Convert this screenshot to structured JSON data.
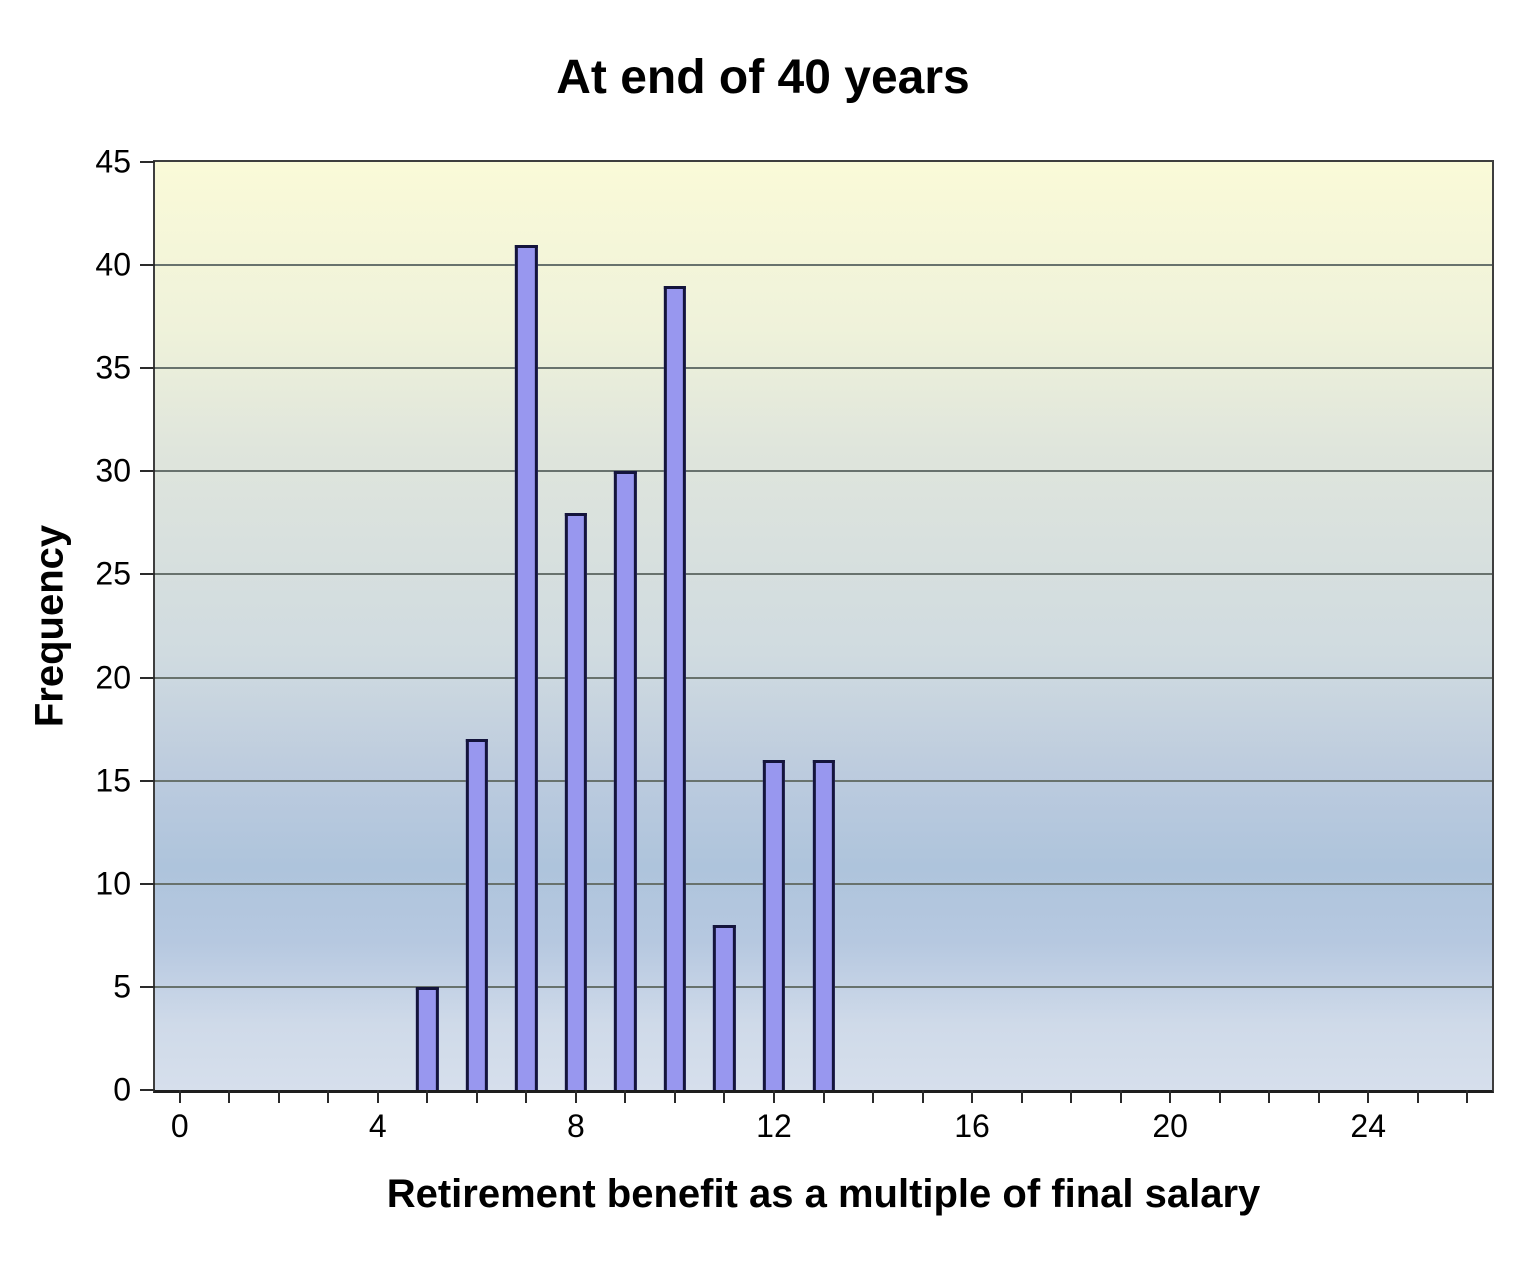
{
  "chart_data": {
    "type": "bar",
    "title": "At end of 40 years",
    "xlabel": "Retirement benefit as a multiple of final salary",
    "ylabel": "Frequency",
    "x": [
      5,
      6,
      7,
      8,
      9,
      10,
      11,
      12,
      13
    ],
    "values": [
      5,
      17,
      41,
      28,
      30,
      39,
      8,
      16,
      16
    ],
    "xlim": [
      -0.5,
      26.5
    ],
    "ylim": [
      0,
      45
    ],
    "xticks_labeled": [
      0,
      4,
      8,
      12,
      16,
      20,
      24
    ],
    "xticks_minor": [
      0,
      1,
      2,
      3,
      4,
      5,
      6,
      7,
      8,
      9,
      10,
      11,
      12,
      13,
      14,
      15,
      16,
      17,
      18,
      19,
      20,
      21,
      22,
      23,
      24,
      25,
      26
    ],
    "yticks": [
      0,
      5,
      10,
      15,
      20,
      25,
      30,
      35,
      40,
      45
    ],
    "grid": "horizontal",
    "legend": "none",
    "bar_width_units": 0.45,
    "colors": {
      "bar_fill": "#9897EF",
      "bar_border": "#14143C",
      "plot_bg_top": "#FAFAD8",
      "plot_bg_blue": "#AEC4DC",
      "plot_bg_bottom": "#D6DFEC",
      "gridline": "#68726D",
      "axis": "#2A2A2A",
      "text": "#000000"
    }
  }
}
